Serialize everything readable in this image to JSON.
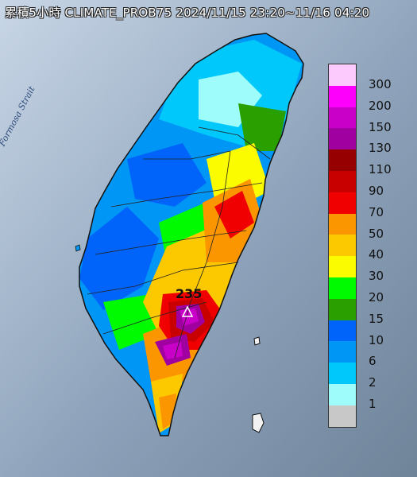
{
  "title": "累積5小時 CLIMATE_PROB75 2024/11/15 23:20~11/16 04:20",
  "sea_label": "Formosa Strait",
  "peak_value": "235",
  "legend": [
    {
      "label": "300",
      "color": "#fccafc"
    },
    {
      "label": "200",
      "color": "#fc00fc"
    },
    {
      "label": "150",
      "color": "#c800c8"
    },
    {
      "label": "130",
      "color": "#a000a0"
    },
    {
      "label": "110",
      "color": "#960000"
    },
    {
      "label": "90",
      "color": "#c80000"
    },
    {
      "label": "70",
      "color": "#f00000"
    },
    {
      "label": "50",
      "color": "#fc9600"
    },
    {
      "label": "40",
      "color": "#fcc800"
    },
    {
      "label": "30",
      "color": "#fcfc00"
    },
    {
      "label": "20",
      "color": "#00fa00"
    },
    {
      "label": "15",
      "color": "#2aa000"
    },
    {
      "label": "10",
      "color": "#0064fa"
    },
    {
      "label": "6",
      "color": "#0096f5"
    },
    {
      "label": "2",
      "color": "#00c8fa"
    },
    {
      "label": "1",
      "color": "#9efcfa"
    },
    {
      "label": "",
      "color": "#c8c8c8"
    }
  ]
}
